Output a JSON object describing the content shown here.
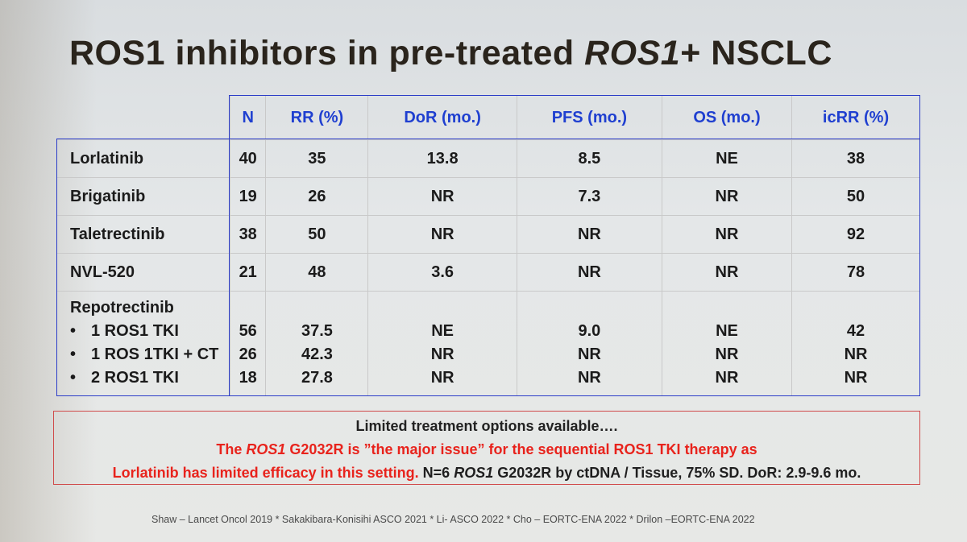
{
  "title": {
    "prefix": "ROS1 inhibitors in pre-treated ",
    "italic": "ROS1",
    "suffix": "+ NSCLC"
  },
  "table": {
    "headers": [
      "N",
      "RR (%)",
      "DoR (mo.)",
      "PFS (mo.)",
      "OS (mo.)",
      "icRR (%)"
    ],
    "rows": [
      {
        "name": "Lorlatinib",
        "values": [
          "40",
          "35",
          "13.8",
          "8.5",
          "NE",
          "38"
        ]
      },
      {
        "name": "Brigatinib",
        "values": [
          "19",
          "26",
          "NR",
          "7.3",
          "NR",
          "50"
        ]
      },
      {
        "name": "Taletrectinib",
        "values": [
          "38",
          "50",
          "NR",
          "NR",
          "NR",
          "92"
        ]
      },
      {
        "name": "NVL-520",
        "values": [
          "21",
          "48",
          "3.6",
          "NR",
          "NR",
          "78"
        ]
      }
    ],
    "group": {
      "name": "Repotrectinib",
      "bullet": "•",
      "subrows": [
        {
          "name": "1 ROS1 TKI",
          "values": [
            "56",
            "37.5",
            "NE",
            "9.0",
            "NE",
            "42"
          ]
        },
        {
          "name": "1 ROS 1TKI + CT",
          "values": [
            "26",
            "42.3",
            "NR",
            "NR",
            "NR",
            "NR"
          ]
        },
        {
          "name": "2 ROS1 TKI",
          "values": [
            "18",
            "27.8",
            "NR",
            "NR",
            "NR",
            "NR"
          ]
        }
      ]
    }
  },
  "note": {
    "line1": "Limited treatment options available….",
    "line2_a": "The ",
    "line2_italic": "ROS1",
    "line2_b": " G2032R is ”the major issue” for the sequential ROS1 TKI therapy as",
    "line3_red": "Lorlatinib has limited efficacy in this setting.",
    "line3_dark_a": " N=6 ",
    "line3_italic": "ROS1",
    "line3_dark_b": " G2032R by ctDNA / Tissue, 75% SD. DoR: 2.9-9.6 mo."
  },
  "footer": "Shaw – Lancet Oncol 2019 * Sakakibara-Konisihi ASCO 2021 *  Li- ASCO 2022 * Cho – EORTC-ENA 2022 * Drilon –EORTC-ENA 2022"
}
